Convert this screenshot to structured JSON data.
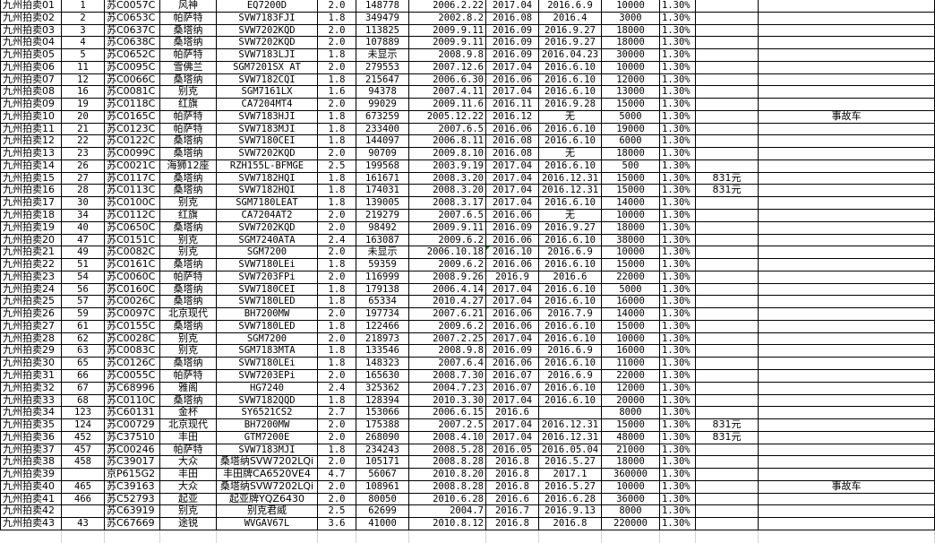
{
  "rows": [
    [
      "九州拍卖01",
      "1",
      "苏C0057C",
      "风神",
      "EQ7200D",
      "2.0",
      "148778",
      "2006.2.22",
      "2017.04",
      "2016.6.9",
      "10000",
      "1.30%",
      "",
      ""
    ],
    [
      "九州拍卖02",
      "2",
      "苏C0653C",
      "帕萨特",
      "SVW7183FJI",
      "1.8",
      "349479",
      "2002.8.2",
      "2016.08",
      "2016.4",
      "3000",
      "1.30%",
      "",
      ""
    ],
    [
      "九州拍卖03",
      "3",
      "苏C0637C",
      "桑塔纳",
      "SVW7202KQD",
      "2.0",
      "113825",
      "2009.9.11",
      "2016.09",
      "2016.9.27",
      "18000",
      "1.30%",
      "",
      ""
    ],
    [
      "九州拍卖04",
      "4",
      "苏C0638C",
      "桑塔纳",
      "SVW7202KQD",
      "2.0",
      "107889",
      "2009.9.11",
      "2016.09",
      "2016.9.27",
      "18000",
      "1.30%",
      "",
      ""
    ],
    [
      "九州拍卖05",
      "5",
      "苏C0652C",
      "帕萨特",
      "SVW7183LJI",
      "1.8",
      "未显示",
      "2008.9.8",
      "2016.09",
      "2016.04.23",
      "30000",
      "1.30%",
      "",
      ""
    ],
    [
      "九州拍卖06",
      "11",
      "苏C0095C",
      "雪佛兰",
      "SGM7201SX AT",
      "2.0",
      "279553",
      "2007.12.6",
      "2017.04",
      "2016.6.10",
      "10000",
      "1.30%",
      "",
      ""
    ],
    [
      "九州拍卖07",
      "12",
      "苏C0066C",
      "桑塔纳",
      "SVW7182CQI",
      "1.8",
      "215647",
      "2006.6.30",
      "2016.06",
      "2016.6.10",
      "12000",
      "1.30%",
      "",
      ""
    ],
    [
      "九州拍卖08",
      "16",
      "苏C0081C",
      "别克",
      "SGM7161LX",
      "1.6",
      "94378",
      "2007.4.11",
      "2017.04",
      "2016.6.10",
      "13000",
      "1.30%",
      "",
      ""
    ],
    [
      "九州拍卖09",
      "19",
      "苏C0118C",
      "红旗",
      "CA7204MT4",
      "2.0",
      "99029",
      "2009.11.6",
      "2016.11",
      "2016.9.28",
      "15000",
      "1.30%",
      "",
      ""
    ],
    [
      "九州拍卖10",
      "20",
      "苏C0165C",
      "帕萨特",
      "SVW7183HJI",
      "1.8",
      "673259",
      "2005.12.22",
      "2016.12",
      "无",
      "5000",
      "1.30%",
      "",
      "事故车"
    ],
    [
      "九州拍卖11",
      "21",
      "苏C0123C",
      "帕萨特",
      "SVW7183MJI",
      "1.8",
      "233400",
      "2007.6.5",
      "2016.06",
      "2016.6.10",
      "19000",
      "1.30%",
      "",
      ""
    ],
    [
      "九州拍卖12",
      "22",
      "苏C0122C",
      "桑塔纳",
      "SVW7180CEI",
      "1.8",
      "144097",
      "2006.8.11",
      "2016.08",
      "2016.6.10",
      "6000",
      "1.30%",
      "",
      ""
    ],
    [
      "九州拍卖13",
      "23",
      "苏C0099C",
      "桑塔纳",
      "SVW7202KQD",
      "2.0",
      "90709",
      "2009.8.10",
      "2016.08",
      "无",
      "18000",
      "1.30%",
      "",
      ""
    ],
    [
      "九州拍卖14",
      "26",
      "苏C0021C",
      "海狮12座",
      "RZH155L-BFMGE",
      "2.5",
      "199568",
      "2003.9.19",
      "2017.04",
      "2016.6.10",
      "500",
      "1.30%",
      "",
      ""
    ],
    [
      "九州拍卖15",
      "27",
      "苏C0117C",
      "桑塔纳",
      "SVW7182HQI",
      "1.8",
      "161671",
      "2008.3.20",
      "2017.04",
      "2016.12.31",
      "15000",
      "1.30%",
      "831元",
      ""
    ],
    [
      "九州拍卖16",
      "28",
      "苏C0113C",
      "桑塔纳",
      "SVW7182HQI",
      "1.8",
      "174031",
      "2008.3.20",
      "2017.04",
      "2016.12.31",
      "15000",
      "1.30%",
      "831元",
      ""
    ],
    [
      "九州拍卖17",
      "30",
      "苏C0100C",
      "别克",
      "SGM7180LEAT",
      "1.8",
      "139005",
      "2008.3.17",
      "2017.04",
      "2016.6.10",
      "14000",
      "1.30%",
      "",
      ""
    ],
    [
      "九州拍卖18",
      "34",
      "苏C0112C",
      "红旗",
      "CA7204AT2",
      "2.0",
      "219279",
      "2007.6.5",
      "2016.06",
      "无",
      "10000",
      "1.30%",
      "",
      ""
    ],
    [
      "九州拍卖19",
      "40",
      "苏C0650C",
      "桑塔纳",
      "SVW7202KQD",
      "2.0",
      "98492",
      "2009.9.11",
      "2016.09",
      "2016.9.27",
      "18000",
      "1.30%",
      "",
      ""
    ],
    [
      "九州拍卖20",
      "47",
      "苏C0151C",
      "别克",
      "SGM7240ATA",
      "2.4",
      "163087",
      "2009.6.2",
      "2016.06",
      "2016.6.10",
      "38000",
      "1.30%",
      "",
      ""
    ],
    [
      "九州拍卖21",
      "49",
      "苏C0082C",
      "别克",
      "SGM7200",
      "2.0",
      "未显示",
      "2006.10.18",
      "2016.10",
      "2016.6.9",
      "10000",
      "1.30%",
      "",
      ""
    ],
    [
      "九州拍卖22",
      "51",
      "苏C0161C",
      "桑塔纳",
      "SVW7180LEi",
      "1.8",
      "59359",
      "2009.6.2",
      "2016.06",
      "2016.6.10",
      "15000",
      "1.30%",
      "",
      ""
    ],
    [
      "九州拍卖23",
      "54",
      "苏C0060C",
      "帕萨特",
      "SVW7203FPi",
      "2.0",
      "116999",
      "2008.9.26",
      "2016.9",
      "2016.6",
      "22000",
      "1.30%",
      "",
      ""
    ],
    [
      "九州拍卖24",
      "56",
      "苏C0160C",
      "桑塔纳",
      "SVW7180CEI",
      "1.8",
      "179138",
      "2006.4.14",
      "2017.04",
      "2016.6.10",
      "5000",
      "1.30%",
      "",
      ""
    ],
    [
      "九州拍卖25",
      "57",
      "苏C0026C",
      "桑塔纳",
      "SVW7180LED",
      "1.8",
      "65334",
      "2010.4.27",
      "2017.04",
      "2016.6.10",
      "16000",
      "1.30%",
      "",
      ""
    ],
    [
      "九州拍卖26",
      "59",
      "苏C0097C",
      "北京现代",
      "BH7200MW",
      "2.0",
      "197734",
      "2007.6.21",
      "2016.06",
      "2016.7.9",
      "14000",
      "1.30%",
      "",
      ""
    ],
    [
      "九州拍卖27",
      "61",
      "苏C0155C",
      "桑塔纳",
      "SVW7180LED",
      "1.8",
      "122466",
      "2009.6.2",
      "2016.06",
      "2016.6.10",
      "15000",
      "1.30%",
      "",
      ""
    ],
    [
      "九州拍卖28",
      "62",
      "苏C0028C",
      "别克",
      "SGM7200",
      "2.0",
      "218973",
      "2007.2.25",
      "2017.04",
      "2016.6.10",
      "10000",
      "1.30%",
      "",
      ""
    ],
    [
      "九州拍卖29",
      "63",
      "苏C0083C",
      "别克",
      "SGM7183MTA",
      "1.8",
      "133546",
      "2008.9.8",
      "2016.09",
      "2016.6.9",
      "16000",
      "1.30%",
      "",
      ""
    ],
    [
      "九州拍卖30",
      "65",
      "苏C0126C",
      "桑塔纳",
      "SVW7180LEi",
      "1.8",
      "148323",
      "2007.6.4",
      "2016.06",
      "2016.6.10",
      "11000",
      "1.30%",
      "",
      ""
    ],
    [
      "九州拍卖31",
      "66",
      "苏C0055C",
      "帕萨特",
      "SVW7203EPi",
      "2.0",
      "165630",
      "2008.7.30",
      "2016.07",
      "2016.6.9",
      "22000",
      "1.30%",
      "",
      ""
    ],
    [
      "九州拍卖32",
      "67",
      "苏C68996",
      "雅阁",
      "HG7240",
      "2.4",
      "325362",
      "2004.7.23",
      "2016.07",
      "2016.6.10",
      "12000",
      "1.30%",
      "",
      ""
    ],
    [
      "九州拍卖33",
      "68",
      "苏C0110C",
      "桑塔纳",
      "SVW7182QQD",
      "1.8",
      "128394",
      "2010.3.30",
      "2017.04",
      "2016.6.10",
      "20000",
      "1.30%",
      "",
      ""
    ],
    [
      "九州拍卖34",
      "123",
      "苏C60131",
      "金杯",
      "SY6521CS2",
      "2.7",
      "153066",
      "2006.6.15",
      "2016.6",
      "",
      "8000",
      "1.30%",
      "",
      ""
    ],
    [
      "九州拍卖35",
      "124",
      "苏C00729",
      "北京现代",
      "BH7200MW",
      "2.0",
      "175388",
      "2007.2.5",
      "2017.04",
      "2016.12.31",
      "15000",
      "1.30%",
      "831元",
      ""
    ],
    [
      "九州拍卖36",
      "452",
      "苏C37510",
      "丰田",
      "GTM7200E",
      "2.0",
      "268090",
      "2008.4.10",
      "2017.04",
      "2016.12.31",
      "48000",
      "1.30%",
      "831元",
      ""
    ],
    [
      "九州拍卖37",
      "457",
      "苏C00246",
      "帕萨特",
      "SVW7183MJI",
      "1.8",
      "234243",
      "2008.5.28",
      "2016.05",
      "2016.05.04",
      "21000",
      "1.30%",
      "",
      ""
    ],
    [
      "九州拍卖38",
      "458",
      "苏C39017",
      "大众",
      "桑塔纳SVW7202LQi",
      "2.0",
      "105171",
      "2008.8.28",
      "2016.8",
      "2016.5.27",
      "18000",
      "1.30%",
      "",
      ""
    ],
    [
      "九州拍卖39",
      "",
      "京P615G2",
      "丰田",
      "丰田牌CA6520VE4",
      "4.7",
      "56067",
      "2010.8.20",
      "2016.8",
      "2017.1",
      "360000",
      "1.30%",
      "",
      ""
    ],
    [
      "九州拍卖40",
      "465",
      "苏C39163",
      "大众",
      "桑塔纳SVW7202LQi",
      "2.0",
      "108961",
      "2008.8.28",
      "2016.8",
      "2016.5.27",
      "10000",
      "1.30%",
      "",
      "事故车"
    ],
    [
      "九州拍卖41",
      "466",
      "苏C52793",
      "起亚",
      "起亚牌YQZ6430",
      "2.0",
      "80050",
      "2010.6.28",
      "2016.6",
      "2016.6.28",
      "36000",
      "1.30%",
      "",
      ""
    ],
    [
      "九州拍卖42",
      "",
      "苏C63919",
      "别克",
      "别克君威",
      "2.5",
      "62699",
      "2004.7",
      "2016.7",
      "2016.9.13",
      "8000",
      "1.30%",
      "",
      ""
    ],
    [
      "九州拍卖43",
      "43",
      "苏C67669",
      "途锐",
      "WVGAV67L",
      "3.6",
      "41000",
      "2010.8.12",
      "2016.8",
      "2016.8",
      "220000",
      "1.30%",
      "",
      ""
    ]
  ]
}
